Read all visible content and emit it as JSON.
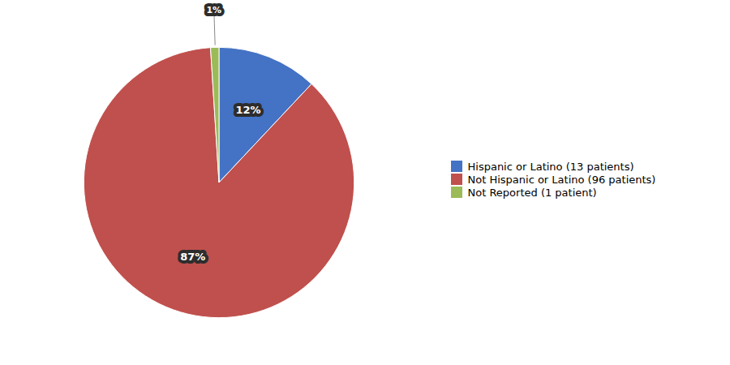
{
  "chart_data": {
    "type": "pie",
    "categories": [
      "Hispanic or Latino (13 patients)",
      "Not Hispanic or Latino (96 patients)",
      "Not Reported (1 patient)"
    ],
    "values": [
      12,
      87,
      1
    ],
    "value_labels": [
      "12%",
      "87%",
      "1%"
    ],
    "colors": [
      "#4472C4",
      "#C0504D",
      "#9BBB59"
    ],
    "data_labels": true,
    "legend": "right"
  }
}
